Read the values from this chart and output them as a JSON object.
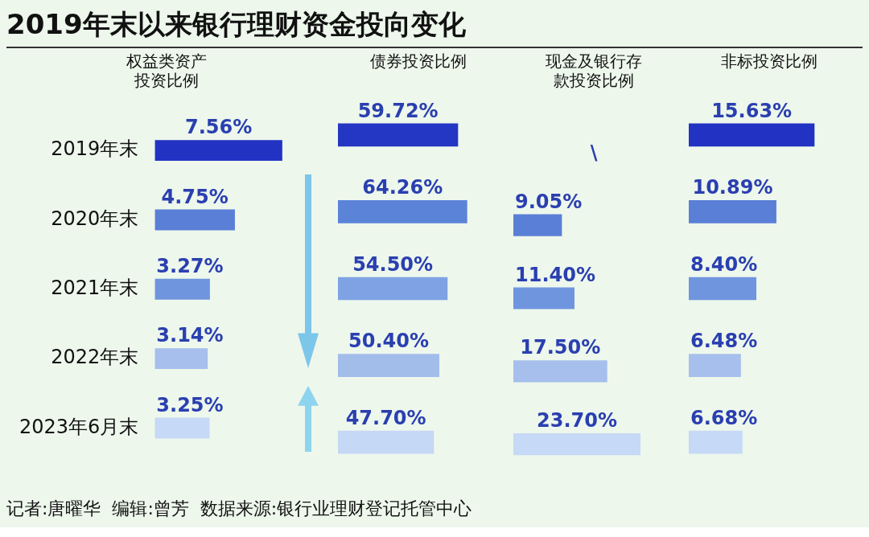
{
  "chart_data": [
    {
      "type": "other",
      "title": "2019年末以来银行理财资金投向变化",
      "annotations": [
        "记者:唐曜华  编辑:曾芳  数据来源:银行业理财登记托管中心"
      ]
    },
    {
      "type": "bar",
      "orientation": "horizontal",
      "title": "权益类资产投资比例",
      "tick_labels": "y",
      "categories": [
        "2019年末",
        "2020年末",
        "2021年末",
        "2022年末",
        "2023年6月末"
      ],
      "colors": [
        "#2233c4",
        "#5a7fd6",
        "#7095df",
        "#a6bfec",
        "#c6d9f6"
      ],
      "values": [
        7.56,
        4.75,
        3.27,
        3.14,
        3.25
      ],
      "value_labels": [
        "7.56%",
        "4.75%",
        "3.27%",
        "3.14%",
        "3.25%"
      ]
    },
    {
      "type": "bar",
      "orientation": "horizontal",
      "title": "债券投资比例",
      "tick_labels": false,
      "categories": [
        null,
        null,
        null,
        null,
        null
      ],
      "colors": [
        "#2436c4",
        "#5b83d8",
        "#7ea2e4",
        "#a3bdeb",
        "#c5d8f5"
      ],
      "values": [
        59.72,
        64.26,
        54.5,
        50.4,
        47.7
      ],
      "value_labels": [
        "59.72%",
        "64.26%",
        "54.50%",
        "50.40%",
        "47.70%"
      ]
    },
    {
      "type": "bar",
      "orientation": "horizontal",
      "title": "现金及银行存款投资比例",
      "tick_labels": false,
      "categories": [
        null,
        null,
        null,
        null,
        null
      ],
      "colors": [
        "#2233c4",
        "#5a7fd6",
        "#7095df",
        "#a6bfec",
        "#c6d9f6"
      ],
      "values": [
        null,
        9.05,
        11.4,
        17.5,
        23.7
      ],
      "value_labels": [
        "\\",
        "9.05%",
        "11.40%",
        "17.50%",
        "23.70%"
      ]
    },
    {
      "type": "bar",
      "orientation": "horizontal",
      "title": "非标投资比例",
      "tick_labels": false,
      "categories": [
        null,
        null,
        null,
        null,
        null
      ],
      "colors": [
        "#2233c4",
        "#5a7fd6",
        "#7095df",
        "#a6bfec",
        "#c6d9f6"
      ],
      "values": [
        15.63,
        10.89,
        8.4,
        6.48,
        6.68
      ],
      "value_labels": [
        "15.63%",
        "10.89%",
        "8.40%",
        "6.48%",
        "6.68%"
      ]
    }
  ]
}
